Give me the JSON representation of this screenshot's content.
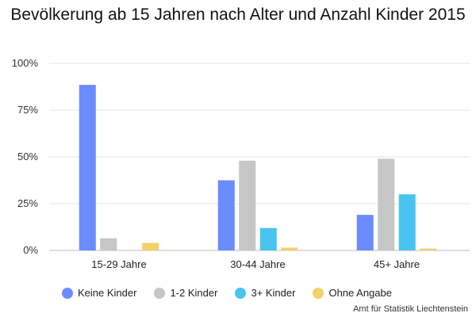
{
  "chart_data": {
    "type": "bar",
    "title": "Bevölkerung ab 15 Jahren nach Alter und Anzahl Kinder 2015",
    "categories": [
      "15-29 Jahre",
      "30-44 Jahre",
      "45+ Jahre"
    ],
    "series": [
      {
        "name": "Keine Kinder",
        "color": "#6a8cff",
        "values": [
          88.5,
          37.5,
          19
        ]
      },
      {
        "name": "1-2 Kinder",
        "color": "#c6c6c6",
        "values": [
          6.5,
          48,
          49
        ]
      },
      {
        "name": "3+ Kinder",
        "color": "#48c4f0",
        "values": [
          0,
          12,
          30
        ]
      },
      {
        "name": "Ohne Angabe",
        "color": "#f3d06a",
        "values": [
          4,
          1.5,
          1
        ]
      }
    ],
    "yticks": [
      "0%",
      "25%",
      "50%",
      "75%",
      "100%"
    ],
    "ylim": [
      0,
      100
    ],
    "grid": true,
    "legend": "bottom"
  },
  "source": "Amt für Statistik Liechtenstein"
}
